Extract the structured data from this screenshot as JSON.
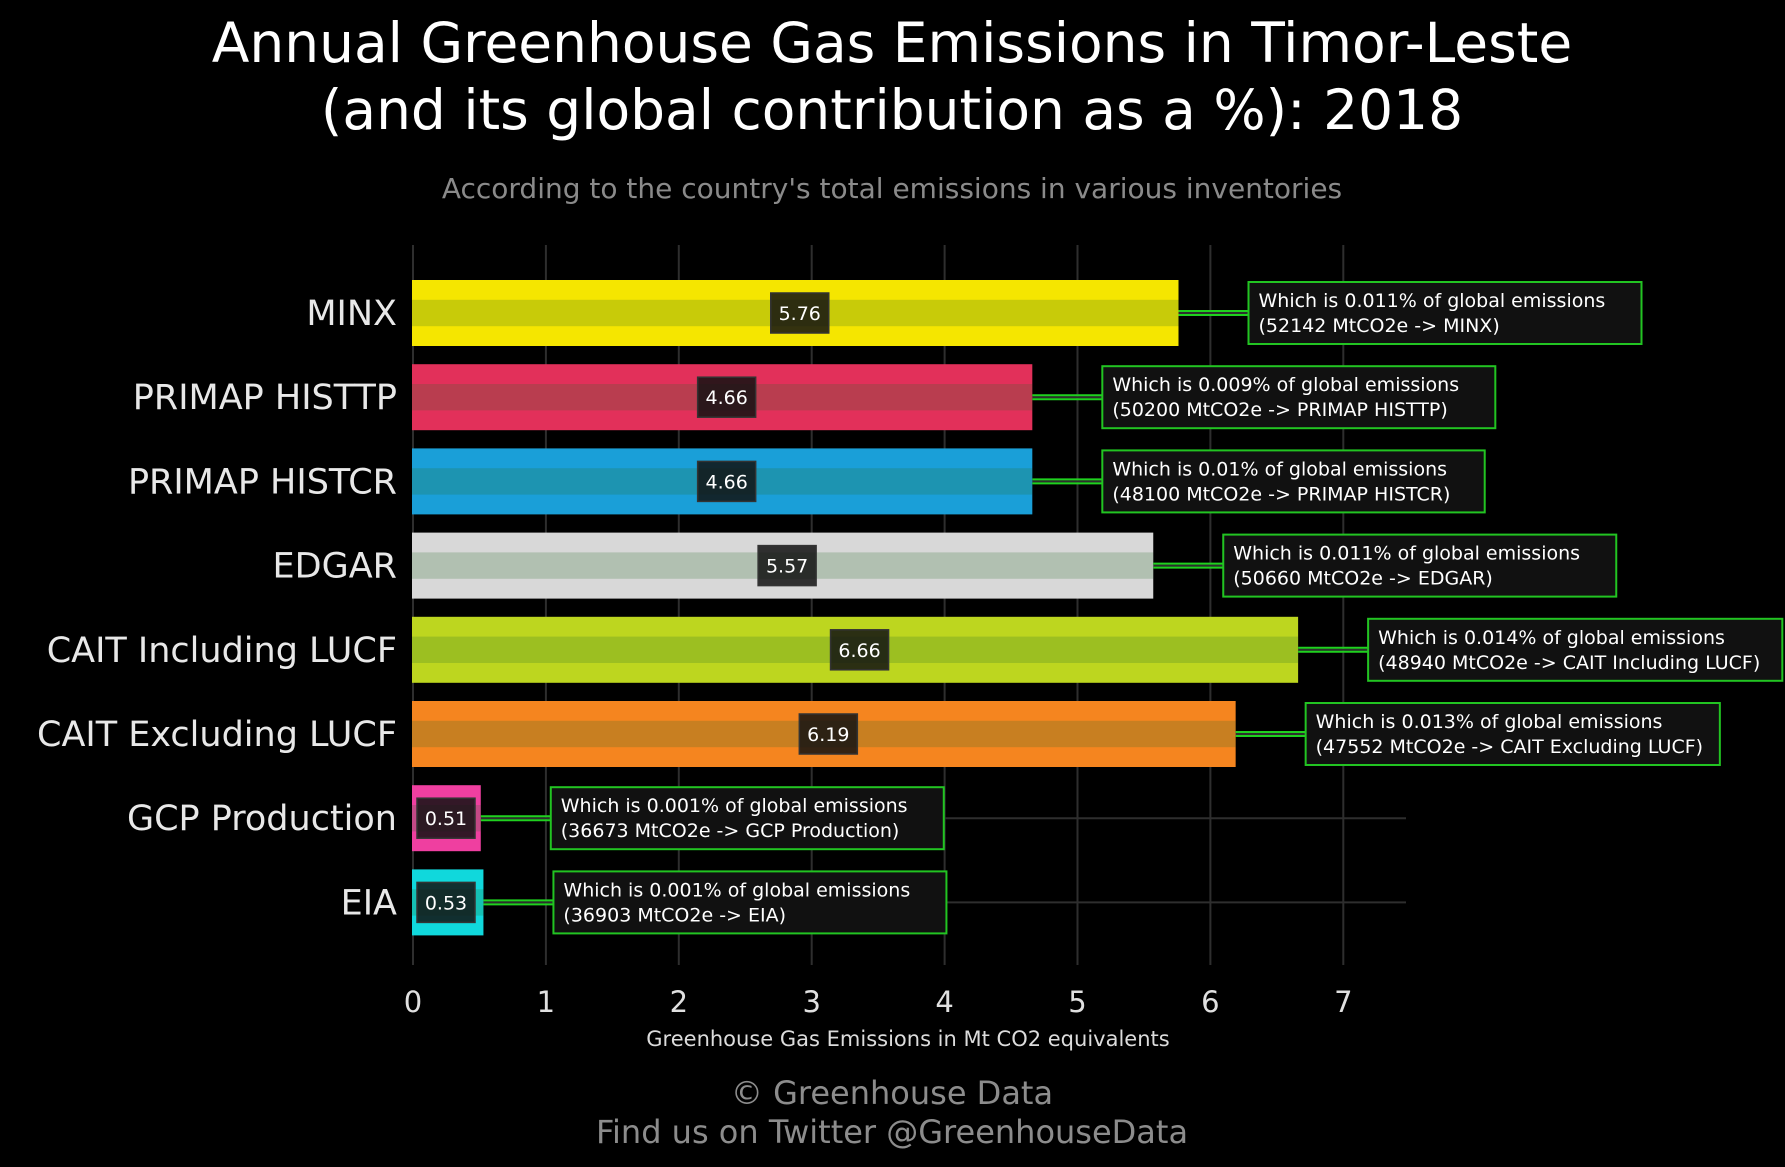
{
  "chart_data": {
    "type": "bar",
    "orientation": "horizontal",
    "title_lines": [
      "Annual Greenhouse Gas Emissions in Timor-Leste",
      "(and its global contribution as a %): 2018"
    ],
    "subtitle": "According to the country's total emissions in various inventories",
    "xlabel": "Greenhouse Gas Emissions in Mt CO2 equivalents",
    "ylabel": "",
    "xlim": [
      0,
      7.5
    ],
    "xticks": [
      0,
      1,
      2,
      3,
      4,
      5,
      6,
      7
    ],
    "grid": true,
    "legend": "none",
    "categories": [
      "MINX",
      "PRIMAP HISTTP",
      "PRIMAP HISTCR",
      "EDGAR",
      "CAIT Including LUCF",
      "CAIT Excluding LUCF",
      "GCP Production",
      "EIA"
    ],
    "values": [
      5.76,
      4.66,
      4.66,
      5.57,
      6.66,
      6.19,
      0.51,
      0.53
    ],
    "value_labels": [
      "5.76",
      "4.66",
      "4.66",
      "5.57",
      "6.66",
      "6.19",
      "0.51",
      "0.53"
    ],
    "colors": [
      "#f5e600",
      "#e2305a",
      "#1a9fd8",
      "#d8d8d8",
      "#bdd61f",
      "#f5851f",
      "#ef3fa0",
      "#10d8dc"
    ],
    "annotations": [
      [
        "Which is 0.011% of global emissions",
        "(52142 MtCO2e -> MINX)"
      ],
      [
        "Which is 0.009% of global emissions",
        "(50200 MtCO2e -> PRIMAP HISTTP)"
      ],
      [
        "Which is 0.01% of global emissions",
        "(48100 MtCO2e -> PRIMAP HISTCR)"
      ],
      [
        "Which is 0.011% of global emissions",
        "(50660 MtCO2e -> EDGAR)"
      ],
      [
        "Which is 0.014% of global emissions",
        "(48940 MtCO2e -> CAIT Including LUCF)"
      ],
      [
        "Which is 0.013% of global emissions",
        "(47552 MtCO2e -> CAIT Excluding LUCF)"
      ],
      [
        "Which is 0.001% of global emissions",
        "(36673 MtCO2e -> GCP Production)"
      ],
      [
        "Which is 0.001% of global emissions",
        "(36903 MtCO2e -> EIA)"
      ]
    ]
  },
  "credits": [
    "© Greenhouse Data",
    "Find us on Twitter @GreenhouseData"
  ],
  "colors": {
    "background": "#000000",
    "grid": "#2e2e2e",
    "annotation_border": "#22c422",
    "annotation_fill": "#111111",
    "connector": "#1fd11f"
  }
}
